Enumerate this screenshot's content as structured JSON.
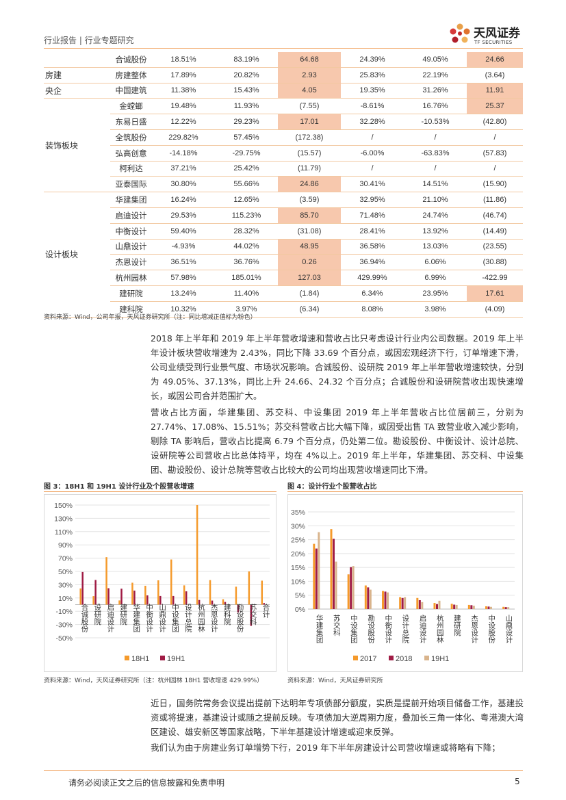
{
  "header": {
    "title": "行业报告 | 行业专题研究"
  },
  "logo": {
    "name_cn": "天风证券",
    "name_en": "TF SECURITIES"
  },
  "table": {
    "groups": [
      {
        "label": "",
        "start": 0,
        "span": 1
      },
      {
        "label": "房建",
        "start": 1,
        "span": 1
      },
      {
        "label": "央企",
        "start": 2,
        "span": 1
      },
      {
        "label": "装饰板块",
        "start": 3,
        "span": 6
      },
      {
        "label": "设计板块",
        "start": 9,
        "span": 8
      }
    ],
    "rows": [
      {
        "name": "合诚股份",
        "cells": [
          "18.51%",
          "83.19%",
          "64.68",
          "24.39%",
          "49.05%",
          "24.66"
        ],
        "hl": [
          2,
          5
        ]
      },
      {
        "name": "房建整体",
        "cells": [
          "17.89%",
          "20.82%",
          "2.93",
          "25.83%",
          "22.19%",
          "(3.64)"
        ],
        "hl": [
          2
        ]
      },
      {
        "name": "中国建筑",
        "cells": [
          "11.38%",
          "15.43%",
          "4.05",
          "19.35%",
          "31.26%",
          "11.91"
        ],
        "hl": [
          2,
          5
        ]
      },
      {
        "name": "金螳螂",
        "cells": [
          "19.48%",
          "11.93%",
          "(7.55)",
          "-8.61%",
          "16.76%",
          "25.37"
        ],
        "hl": [
          5
        ]
      },
      {
        "name": "东易日盛",
        "cells": [
          "12.22%",
          "29.23%",
          "17.01",
          "32.28%",
          "-10.53%",
          "(42.80)"
        ],
        "hl": [
          2
        ]
      },
      {
        "name": "全筑股份",
        "cells": [
          "229.82%",
          "57.45%",
          "(172.38)",
          "/",
          "/",
          "/"
        ],
        "hl": []
      },
      {
        "name": "弘高创意",
        "cells": [
          "-14.18%",
          "-29.75%",
          "(15.57)",
          "-6.00%",
          "-63.83%",
          "(57.83)"
        ],
        "hl": []
      },
      {
        "name": "柯利达",
        "cells": [
          "37.21%",
          "25.42%",
          "(11.79)",
          "/",
          "/",
          "/"
        ],
        "hl": []
      },
      {
        "name": "亚泰国际",
        "cells": [
          "30.80%",
          "55.66%",
          "24.86",
          "30.41%",
          "14.51%",
          "(15.90)"
        ],
        "hl": [
          2
        ]
      },
      {
        "name": "华建集团",
        "cells": [
          "16.24%",
          "12.65%",
          "(3.59)",
          "32.95%",
          "21.10%",
          "(11.86)"
        ],
        "hl": []
      },
      {
        "name": "启迪设计",
        "cells": [
          "29.53%",
          "115.23%",
          "85.70",
          "71.48%",
          "24.74%",
          "(46.74)"
        ],
        "hl": [
          2
        ]
      },
      {
        "name": "中衡设计",
        "cells": [
          "59.40%",
          "28.32%",
          "(31.08)",
          "28.41%",
          "13.92%",
          "(14.49)"
        ],
        "hl": []
      },
      {
        "name": "山鼎设计",
        "cells": [
          "-4.93%",
          "44.02%",
          "48.95",
          "36.58%",
          "13.03%",
          "(23.55)"
        ],
        "hl": [
          2
        ]
      },
      {
        "name": "杰恩设计",
        "cells": [
          "36.51%",
          "36.76%",
          "0.26",
          "36.94%",
          "6.06%",
          "(30.88)"
        ],
        "hl": [
          2
        ]
      },
      {
        "name": "杭州园林",
        "cells": [
          "57.98%",
          "185.01%",
          "127.03",
          "429.99%",
          "6.99%",
          "-422.99"
        ],
        "hl": [
          2
        ]
      },
      {
        "name": "建研院",
        "cells": [
          "13.24%",
          "11.40%",
          "(1.84)",
          "6.34%",
          "23.95%",
          "17.61"
        ],
        "hl": [
          5
        ]
      },
      {
        "name": "建科院",
        "cells": [
          "10.32%",
          "3.97%",
          "(6.34)",
          "8.08%",
          "3.98%",
          "(4.09)"
        ],
        "hl": []
      }
    ],
    "source": "资料来源：Wind，公司年报，天风证券研究所（注：同比增减正值标为粉色）"
  },
  "paragraphs": [
    "2018 年上半年和 2019 年上半年营收增速和营收占比只考虑设计行业内公司数据。2019 年上半年设计板块营收增速为 2.43%，同比下降 33.69 个百分点，或因宏观经济下行，订单增速下滑，公司业绩受到行业景气度、市场状况影响。合诚股份、设研院 2019 年上半年营收增速较快，分别为 49.05%、37.13%，同比上升 24.66、24.32 个百分点；合诚股份和设研院营收出现快速增长，或因公司合并范围扩大。",
    "营收占比方面，华建集团、苏交科、中设集团 2019 年上半年营收占比位居前三，分别为 27.74%、17.08%、15.51%；苏交科营收占比大幅下降，或因受出售 TA 致营业收入减少影响，剔除 TA 影响后，营收占比提高 6.79 个百分点，仍处第二位。勘设股份、中衡设计、设计总院、设研院等公司营收占比总体持平，均在 4%以上。2019 年上半年，华建集团、苏交科、中设集团、勘设股份、设计总院等营收占比较大的公司均出现营收增速同比下滑。",
    "近日，国务院常务会议提出提前下达明年专项债部分额度，实质是提前开始项目储备工作，基建投资或将提速，基建设计或随之提前反映。专项债加大逆周期力度，叠加长三角一体化、粤港澳大湾区建设、雄安新区等国家战略，下半年基建设计增速或迎来反弹。",
    "我们认为由于房建业务订单增势下行，2019 年下半年房建设计公司营收增速或将略有下降；"
  ],
  "figures": {
    "fig3": {
      "title": "图 3：18H1 和 19H1 设计行业及个股营收增速",
      "source": "资料来源：Wind，天风证券研究所（注：杭州园林 18H1 营收增速 429.99%）"
    },
    "fig4": {
      "title": "图 4：设计行业个股营收占比",
      "source": "资料来源：Wind，天风证券研究所"
    }
  },
  "chart_data": [
    {
      "type": "bar",
      "categories": [
        "合诚股份",
        "设研院",
        "启迪设计",
        "建研院",
        "华建集团",
        "中衡设计",
        "山鼎设计",
        "中设集团",
        "设计总院",
        "杭州园林",
        "杰恩设计",
        "建科院",
        "勘设股份",
        "苏交科",
        "合计"
      ],
      "series": [
        {
          "name": "18H1",
          "values": [
            24.4,
            12.8,
            71.5,
            6.3,
            33.0,
            28.4,
            36.6,
            68.0,
            29.0,
            150,
            36.9,
            8.1,
            27.0,
            50.0,
            36.1
          ]
        },
        {
          "name": "19H1",
          "values": [
            49.1,
            37.1,
            24.7,
            24.0,
            21.1,
            13.9,
            13.0,
            13.0,
            20.0,
            7.0,
            6.1,
            4.0,
            -12.0,
            -32.0,
            2.4
          ]
        }
      ],
      "ylim": [
        -50,
        150
      ],
      "yticks": [
        "150%",
        "130%",
        "110%",
        "90%",
        "70%",
        "50%",
        "30%",
        "10%",
        "-10%",
        "-30%",
        "-50%"
      ],
      "colors": {
        "18H1": "#f59a2b",
        "19H1": "#a01c45"
      }
    },
    {
      "type": "bar",
      "categories": [
        "华建集团",
        "苏交科",
        "中设集团",
        "勘设股份",
        "中衡设计",
        "设计总院",
        "启迪设计",
        "杭州园林",
        "建研院",
        "杰恩设计",
        "中设股份",
        "山鼎设计"
      ],
      "series": [
        {
          "name": "2017",
          "values": [
            23.5,
            28.8,
            12.5,
            8.5,
            6.5,
            4.3,
            4.0,
            2.2,
            1.9,
            1.5,
            1.0,
            0.8
          ]
        },
        {
          "name": "2018",
          "values": [
            21.8,
            25.3,
            15.1,
            7.8,
            6.3,
            4.0,
            3.2,
            1.8,
            1.6,
            1.4,
            0.9,
            0.7
          ]
        },
        {
          "name": "19H1",
          "values": [
            27.7,
            17.1,
            15.5,
            7.0,
            6.0,
            4.3,
            2.5,
            3.0,
            1.5,
            1.2,
            0.8,
            0.7
          ]
        }
      ],
      "ylim": [
        0,
        35
      ],
      "yticks": [
        "35%",
        "30%",
        "25%",
        "20%",
        "15%",
        "10%",
        "5%",
        "0%"
      ],
      "colors": {
        "2017": "#f59a2b",
        "2018": "#a01c45",
        "19H1": "#d9b48c"
      }
    }
  ],
  "footer": {
    "disclaimer": "请务必阅读正文之后的信息披露和免责申明",
    "page": "5"
  }
}
